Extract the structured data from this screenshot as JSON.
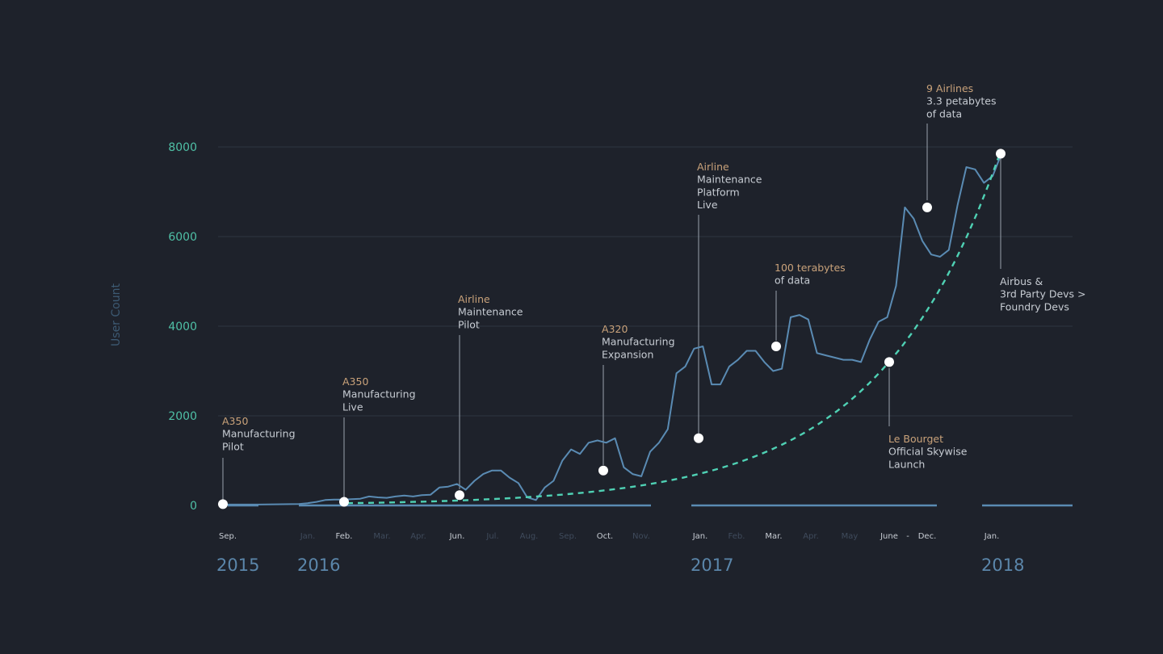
{
  "chart_data": {
    "type": "line",
    "ylabel": "User Count",
    "ylim": [
      0,
      8000
    ],
    "yticks": [
      "0",
      "2000",
      "4000",
      "6000",
      "8000"
    ],
    "grid": true,
    "colors": {
      "series": "#5a8bb3",
      "trend": "#4fd1b4",
      "tick": "#4fc0a6",
      "month_major": "#c7ccd3",
      "month_minor": "#3f4b5c",
      "year": "#5b86aa",
      "annotation_title": "#c9a27a",
      "annotation_text": "#c7ccd3",
      "marker": "#ffffff",
      "background": "#1e222b"
    },
    "years": [
      "2015",
      "2016",
      "2017",
      "2018"
    ],
    "months": [
      {
        "label": "Sep.",
        "major": true
      },
      {
        "label": "Jan.",
        "major": false
      },
      {
        "label": "Feb.",
        "major": true
      },
      {
        "label": "Mar.",
        "major": false
      },
      {
        "label": "Apr.",
        "major": false
      },
      {
        "label": "Jun.",
        "major": true
      },
      {
        "label": "Jul.",
        "major": false
      },
      {
        "label": "Aug.",
        "major": false
      },
      {
        "label": "Sep.",
        "major": false
      },
      {
        "label": "Oct.",
        "major": true
      },
      {
        "label": "Nov.",
        "major": false
      },
      {
        "label": "Jan.",
        "major": true
      },
      {
        "label": "Feb.",
        "major": false
      },
      {
        "label": "Mar.",
        "major": true
      },
      {
        "label": "Apr.",
        "major": false
      },
      {
        "label": "May",
        "major": false
      },
      {
        "label": "June",
        "major": true
      },
      {
        "label": "-",
        "major": true
      },
      {
        "label": "Dec.",
        "major": true
      },
      {
        "label": "Jan.",
        "major": true
      }
    ],
    "series": [
      {
        "values": [
          20,
          20,
          20,
          20,
          30,
          50,
          80,
          120,
          130,
          130,
          140,
          150,
          200,
          180,
          170,
          200,
          220,
          200,
          230,
          240,
          400,
          420,
          480,
          350,
          550,
          700,
          780,
          780,
          620,
          500,
          180,
          120,
          400,
          550,
          1000,
          1250,
          1150,
          1400,
          1450,
          1400,
          1500,
          850,
          700,
          650,
          1200,
          1400,
          1700,
          2950,
          3100,
          3500,
          3550,
          2700,
          2700,
          3100,
          3250,
          3450,
          3450,
          3200,
          3000,
          3050,
          4200,
          4250,
          4150,
          3400,
          3350,
          3300,
          3250,
          3250,
          3200,
          3700,
          4100,
          4200,
          4900,
          6650,
          6400,
          5900,
          5600,
          5550,
          5700,
          6700,
          7550,
          7500,
          7200,
          7350,
          7850
        ]
      }
    ],
    "trend": {
      "style": "dashed",
      "from": 50,
      "to": 7850
    },
    "markers": [
      {
        "value": 30,
        "lines": [
          "A350",
          "Manufacturing",
          "Pilot"
        ]
      },
      {
        "value": 80,
        "lines": [
          "A350",
          "Manufacturing",
          "Live"
        ]
      },
      {
        "value": 230,
        "lines": [
          "Airline",
          "Maintenance",
          "Pilot"
        ]
      },
      {
        "value": 780,
        "lines": [
          "A320",
          "Manufacturing",
          "Expansion"
        ]
      },
      {
        "value": 1500,
        "lines": [
          "Airline",
          "Maintenance",
          "Platform",
          "Live"
        ]
      },
      {
        "value": 3550,
        "lines": [
          "100 terabytes",
          "of data"
        ]
      },
      {
        "value": 3200,
        "lines": [
          "Le Bourget",
          "Official Skywise",
          "Launch"
        ]
      },
      {
        "value": 6650,
        "lines": [
          "9 Airlines",
          "3.3 petabytes",
          "of data"
        ]
      },
      {
        "value": 7850,
        "lines": [
          "Airbus &",
          "3rd Party Devs >",
          "Foundry Devs"
        ]
      }
    ]
  }
}
